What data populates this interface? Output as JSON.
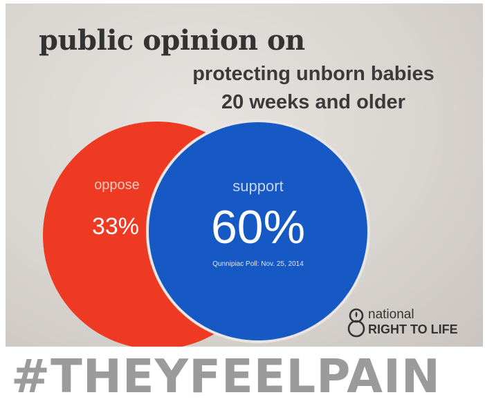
{
  "headline": {
    "title": "public opinion on",
    "subtitle_line1": "protecting unborn babies",
    "subtitle_line2": "20 weeks and older"
  },
  "venn": {
    "oppose": {
      "label": "oppose",
      "percent": "33%",
      "value": 33,
      "color": "#ee3a22"
    },
    "support": {
      "label": "support",
      "percent": "60%",
      "value": 60,
      "color": "#1759c4"
    },
    "source": "Qunnipiac Poll: Nov. 25, 2014"
  },
  "logo": {
    "line1": "national",
    "line2": "RIGHT TO LIFE"
  },
  "hashtag": "#THEYFEELPAIN"
}
